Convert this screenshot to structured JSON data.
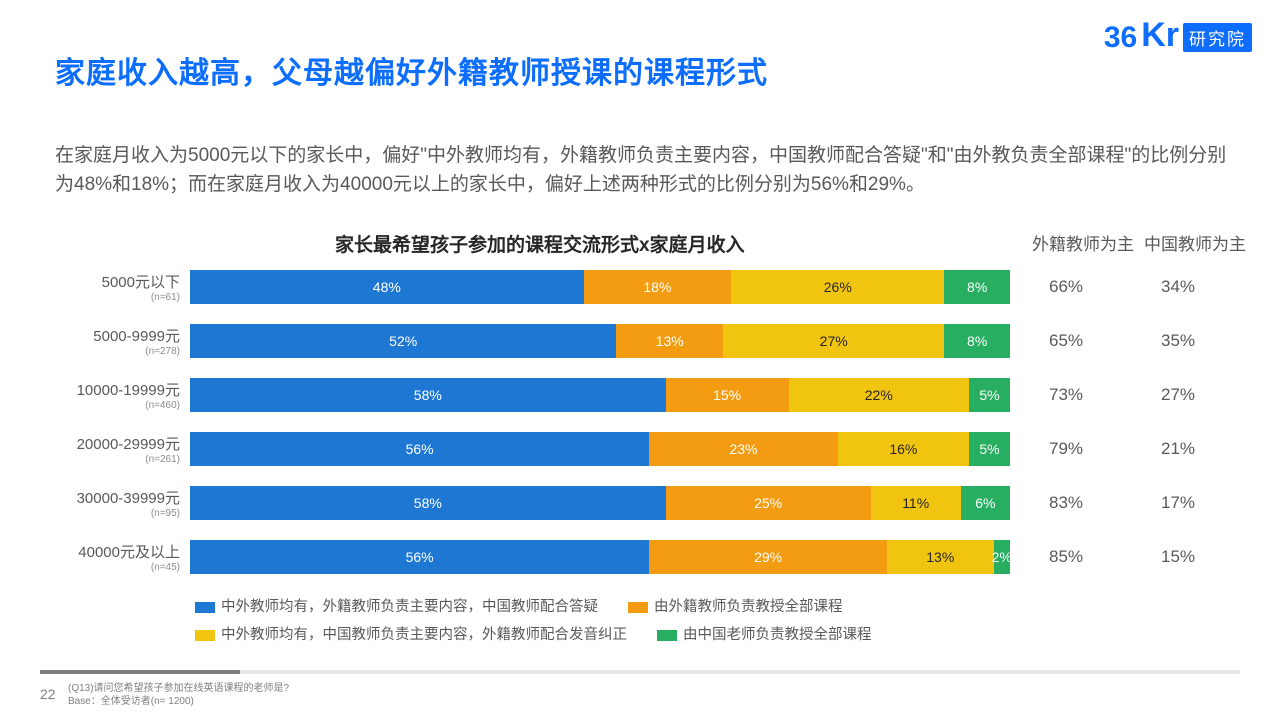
{
  "logo": {
    "t1": "36",
    "t2": "Kr",
    "box": "研究院"
  },
  "title": "家庭收入越高，父母越偏好外籍教师授课的课程形式",
  "description": "在家庭月收入为5000元以下的家长中，偏好\"中外教师均有，外籍教师负责主要内容，中国教师配合答疑\"和\"由外教负责全部课程\"的比例分别为48%和18%；而在家庭月收入为40000元以上的家长中，偏好上述两种形式的比例分别为56%和29%。",
  "chart": {
    "title": "家长最希望孩子参加的课程交流形式x家庭月收入",
    "type": "stacked-bar-horizontal",
    "col_headers": [
      "外籍教师为主",
      "中国教师为主"
    ],
    "series_colors": [
      "#1f77d4",
      "#f39c12",
      "#f1c40f",
      "#27ae60"
    ],
    "series_labels": [
      "中外教师均有，外籍教师负责主要内容，中国教师配合答疑",
      "由外籍教师负责教授全部课程",
      "中外教师均有，中国教师负责主要内容，外籍教师配合发音纠正",
      "由中国老师负责教授全部课程"
    ],
    "rows": [
      {
        "label": "5000元以下",
        "n": "(n=61)",
        "segments": [
          48,
          18,
          26,
          8
        ],
        "foreign": "66%",
        "chinese": "34%"
      },
      {
        "label": "5000-9999元",
        "n": "(n=278)",
        "segments": [
          52,
          13,
          27,
          8
        ],
        "foreign": "65%",
        "chinese": "35%"
      },
      {
        "label": "10000-19999元",
        "n": "(n=460)",
        "segments": [
          58,
          15,
          22,
          5
        ],
        "foreign": "73%",
        "chinese": "27%"
      },
      {
        "label": "20000-29999元",
        "n": "(n=261)",
        "segments": [
          56,
          23,
          16,
          5
        ],
        "foreign": "79%",
        "chinese": "21%"
      },
      {
        "label": "30000-39999元",
        "n": "(n=95)",
        "segments": [
          58,
          25,
          11,
          6
        ],
        "foreign": "83%",
        "chinese": "17%"
      },
      {
        "label": "40000元及以上",
        "n": "(n=45)",
        "segments": [
          56,
          29,
          13,
          2
        ],
        "foreign": "85%",
        "chinese": "15%"
      }
    ],
    "dark_text_series": [
      2
    ]
  },
  "page_number": "22",
  "footnote_line1": "(Q13)请问您希望孩子参加在线英语课程的老师是?",
  "footnote_line2": "Base：全体受访者(n= 1200)"
}
